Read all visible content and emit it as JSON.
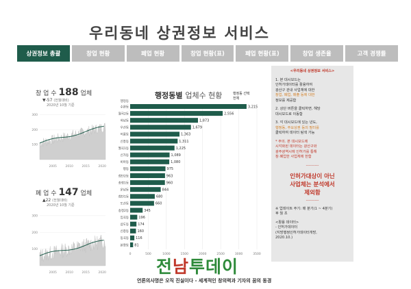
{
  "app": {
    "title": "우리동네 상권정보 서비스"
  },
  "tabs": [
    {
      "label": "상권정보 총괄",
      "active": true
    },
    {
      "label": "창업 현황",
      "active": false
    },
    {
      "label": "폐업 현황",
      "active": false
    },
    {
      "label": "창업 현황(표)",
      "active": false
    },
    {
      "label": "폐업 현황(표)",
      "active": false
    },
    {
      "label": "창업 생존율",
      "active": false
    },
    {
      "label": "고객 경쟁률",
      "active": false
    }
  ],
  "startup": {
    "label": "창 업 수",
    "value": "188",
    "unit": "업체",
    "delta": "▼-57",
    "delta_note": "(전월대비)",
    "date": "2020년 10월 기준",
    "y_ticks": [
      "300",
      "200",
      "100"
    ],
    "x_ticks": [
      "2005",
      "2010",
      "2015",
      "2020"
    ]
  },
  "closure": {
    "label": "폐 업 수",
    "value": "147",
    "unit": "업체",
    "delta": "▲22",
    "delta_note": "(전월대비)",
    "date": "2020년 10월 기준",
    "y_ticks": [
      "300",
      "200",
      "100"
    ],
    "x_ticks": [
      "2005",
      "2010",
      "2015",
      "2020"
    ]
  },
  "chart": {
    "title_prefix": "행정동별",
    "title_suffix": "업체수 현황",
    "filter_note_line1": "행정동 선택",
    "filter_note_line2": "전체"
  },
  "chart_data": {
    "type": "bar",
    "orientation": "horizontal",
    "header": "행정동",
    "categories": [
      "수완동",
      "월곡2동",
      "하남동",
      "우산동",
      "어룡동",
      "신흥동",
      "월곡1동",
      "신가동",
      "비아동",
      "평동",
      "첨단2동",
      "송정1동",
      "운남동",
      "첨단1동",
      "도산동",
      "송정2동",
      "임곡동",
      "삼도동",
      "신창동",
      "동곡동",
      "본량동"
    ],
    "values": [
      3215,
      2556,
      1873,
      1679,
      1363,
      1311,
      1225,
      1089,
      1080,
      975,
      963,
      960,
      844,
      680,
      660,
      345,
      196,
      174,
      160,
      116,
      81
    ],
    "x_ticks": [
      "0",
      "500",
      "1000",
      "1500",
      "2000",
      "2500",
      "3000",
      "3500"
    ],
    "xlim": [
      0,
      3500
    ],
    "bar_color": "#1f5c4b"
  },
  "side": {
    "header": "<우리동네 상권정보 서비스>",
    "item1_a": "1. 본 대시보드는",
    "item1_b": "인허가데이터를 활용하여",
    "item1_c": "광산구 관내 사업체에 대한",
    "item1_d": "창업, 폐업, 매출 등에 대한",
    "item1_e": "정보를 제공함",
    "item2_a": "2. 상단 버튼을 클릭하면, 해당",
    "item2_b": "대시보드로 이동함",
    "item3_a": "3. 각 대시보드에 있는 년도,",
    "item3_b": "행정동, 주요상권 등의 필터를",
    "item3_c": "클릭하여 데이터 탐색 가능",
    "note_a": "* 주의. 본 대시보드에",
    "note_b": "시각화된 데이터는 광산구와",
    "note_c": "광주광역시에 인허가를 통해",
    "note_d": "창·폐업한 사업체에 한함",
    "dash": "----------",
    "big_a": "인허가대상이 아닌",
    "big_b": "사업체는 분석에서",
    "big_c": "제외함",
    "update_a": "※ 업데이트 주기: 매 분기(1 ~ 4분기)",
    "update_b": "후 월 초",
    "source_head": "<활용 데이터>",
    "source_a": "- 인허가데이터",
    "source_b": "(지방행정인허가데이터개방,",
    "source_c": "2020.10.)"
  },
  "footer": {
    "logo_a": "전",
    "logo_b": "남",
    "logo_c": "투데이",
    "slogan": "언론의사명은 오직 진실이다 - 세계적인 창의력과 기자의 꿈의 동경"
  }
}
